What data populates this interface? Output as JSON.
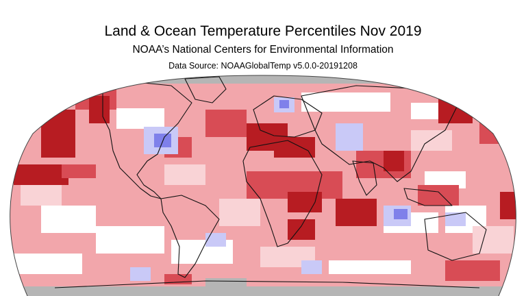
{
  "map": {
    "title": "Land & Ocean Temperature Percentiles Nov 2019",
    "subtitle": "NOAA’s National Centers for Environmental Information",
    "source": "Data Source: NOAAGlobalTemp v5.0.0-20191208",
    "projection": "Robinson",
    "colors": {
      "record_warmest": "#b71c22",
      "much_warmer": "#d84c55",
      "warmer": "#f2a6ab",
      "slightly_warmer": "#f9d3d6",
      "near_average": "#ffffff",
      "cooler": "#c9c9f7",
      "much_cooler": "#7f80ea",
      "missing": "#b5b5b5",
      "land_outline": "#111111"
    }
  }
}
